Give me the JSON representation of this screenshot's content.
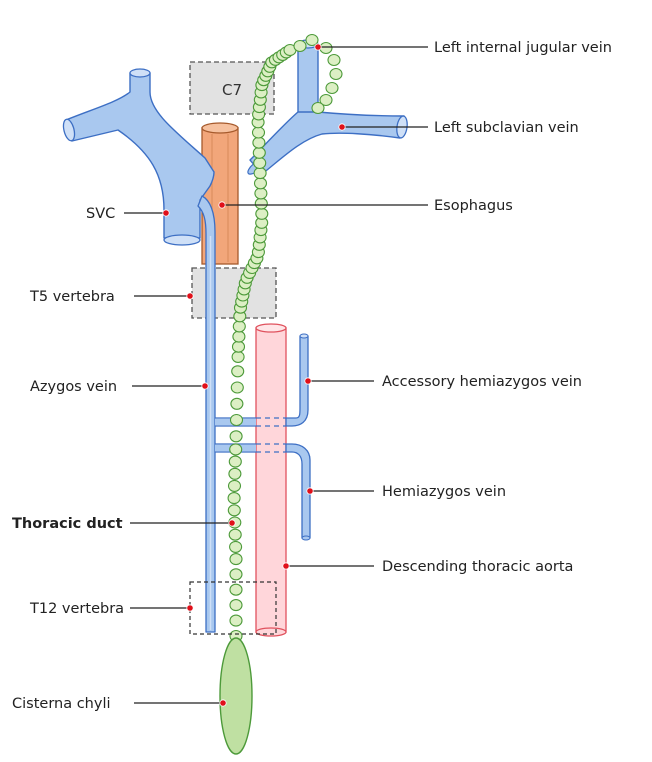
{
  "labels": {
    "left_internal_jugular_vein": "Left internal jugular vein",
    "left_subclavian_vein": "Left subclavian vein",
    "svc": "SVC",
    "esophagus": "Esophagus",
    "t5_vertebra": "T5 vertebra",
    "azygos_vein": "Azygos vein",
    "accessory_hemiazygos_vein": "Accessory hemiazygos vein",
    "hemiazygos_vein": "Hemiazygos vein",
    "thoracic_duct": "Thoracic duct",
    "descending_thoracic_aorta": "Descending thoracic aorta",
    "t12_vertebra": "T12 vertebra",
    "cisterna_chyli": "Cisterna chyli"
  },
  "vertebra_labels": {
    "c7": "C7"
  },
  "colors": {
    "vein": "#a9c8ef",
    "vein_stroke": "#3d6fc4",
    "esophagus": "#f2a67a",
    "esophagus_stroke": "#a65a2c",
    "aorta": "#ffd6da",
    "aorta_stroke": "#e0525e",
    "lymph": "#dcefc4",
    "lymph_stroke": "#4d9a3a",
    "cisterna": "#bfe0a2",
    "vertebra_fill": "#e2e2e2",
    "vertebra_stroke": "#555555",
    "pin": "#e0101a"
  }
}
